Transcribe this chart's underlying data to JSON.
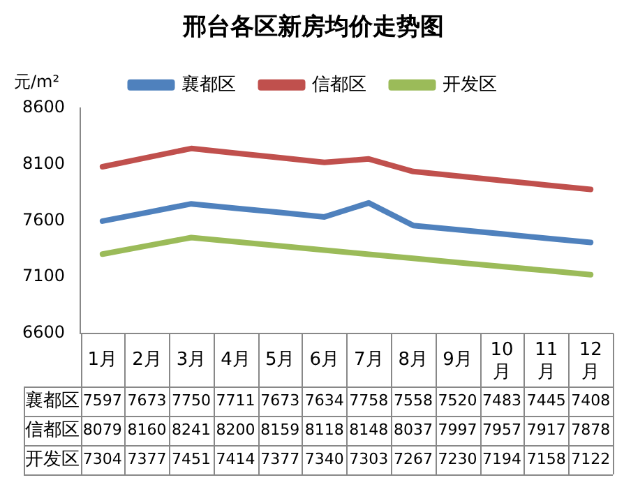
{
  "chart_data": {
    "type": "line",
    "title": "邢台各区新房均价走势图",
    "ylabel": "元/m²",
    "categories": [
      "1月",
      "2月",
      "3月",
      "4月",
      "5月",
      "6月",
      "7月",
      "8月",
      "9月",
      "10月",
      "11月",
      "12月"
    ],
    "series": [
      {
        "name": "襄都区",
        "color": "#4f81bd",
        "values": [
          7597,
          7673,
          7750,
          7711,
          7673,
          7634,
          7758,
          7558,
          7520,
          7483,
          7445,
          7408
        ]
      },
      {
        "name": "信都区",
        "color": "#c0504d",
        "values": [
          8079,
          8160,
          8241,
          8200,
          8159,
          8118,
          8148,
          8037,
          7997,
          7957,
          7917,
          7878
        ]
      },
      {
        "name": "开发区",
        "color": "#9bbb59",
        "values": [
          7304,
          7377,
          7451,
          7414,
          7377,
          7340,
          7303,
          7267,
          7230,
          7194,
          7158,
          7122
        ]
      }
    ],
    "ylim": [
      6600,
      8600
    ],
    "yticks": [
      6600,
      7100,
      7600,
      8100,
      8600
    ],
    "grid": false,
    "legend": "top",
    "marker": "none",
    "line_style": "solid",
    "data_labels": true
  }
}
